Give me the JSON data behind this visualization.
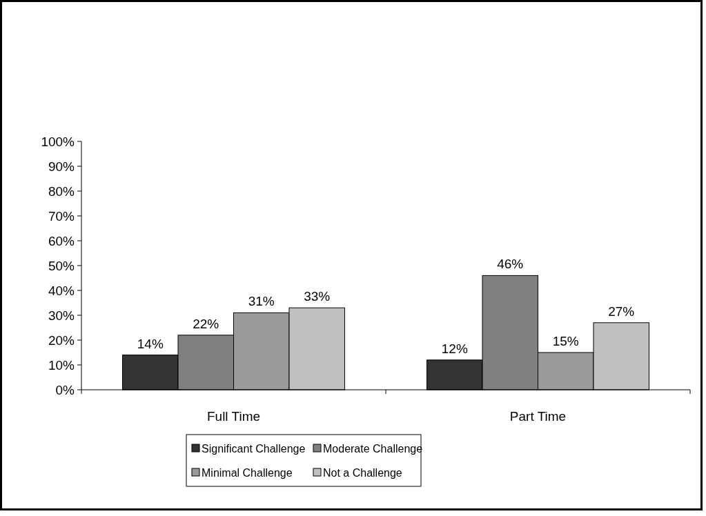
{
  "chart_data": {
    "type": "bar",
    "categories": [
      "Full Time",
      "Part Time"
    ],
    "series": [
      {
        "name": "Significant Challenge",
        "color": "#333333",
        "values": [
          14,
          12
        ]
      },
      {
        "name": "Moderate Challenge",
        "color": "#808080",
        "values": [
          22,
          46
        ]
      },
      {
        "name": "Minimal Challenge",
        "color": "#9a9a9a",
        "values": [
          31,
          15
        ]
      },
      {
        "name": "Not a Challenge",
        "color": "#c0c0c0",
        "values": [
          33,
          27
        ]
      }
    ],
    "ylim": [
      0,
      100
    ],
    "yticks": [
      {
        "value": 0,
        "label": "0%"
      },
      {
        "value": 10,
        "label": "10%"
      },
      {
        "value": 20,
        "label": "20%"
      },
      {
        "value": 30,
        "label": "30%"
      },
      {
        "value": 40,
        "label": "40%"
      },
      {
        "value": 50,
        "label": "50%"
      },
      {
        "value": 60,
        "label": "60%"
      },
      {
        "value": 70,
        "label": "70%"
      },
      {
        "value": 80,
        "label": "80%"
      },
      {
        "value": 90,
        "label": "90%"
      },
      {
        "value": 100,
        "label": "100%"
      }
    ],
    "value_labels": [
      [
        "14%",
        "12%"
      ],
      [
        "22%",
        "46%"
      ],
      [
        "31%",
        "15%"
      ],
      [
        "33%",
        "27%"
      ]
    ],
    "grid": false,
    "legend": "bottom"
  }
}
